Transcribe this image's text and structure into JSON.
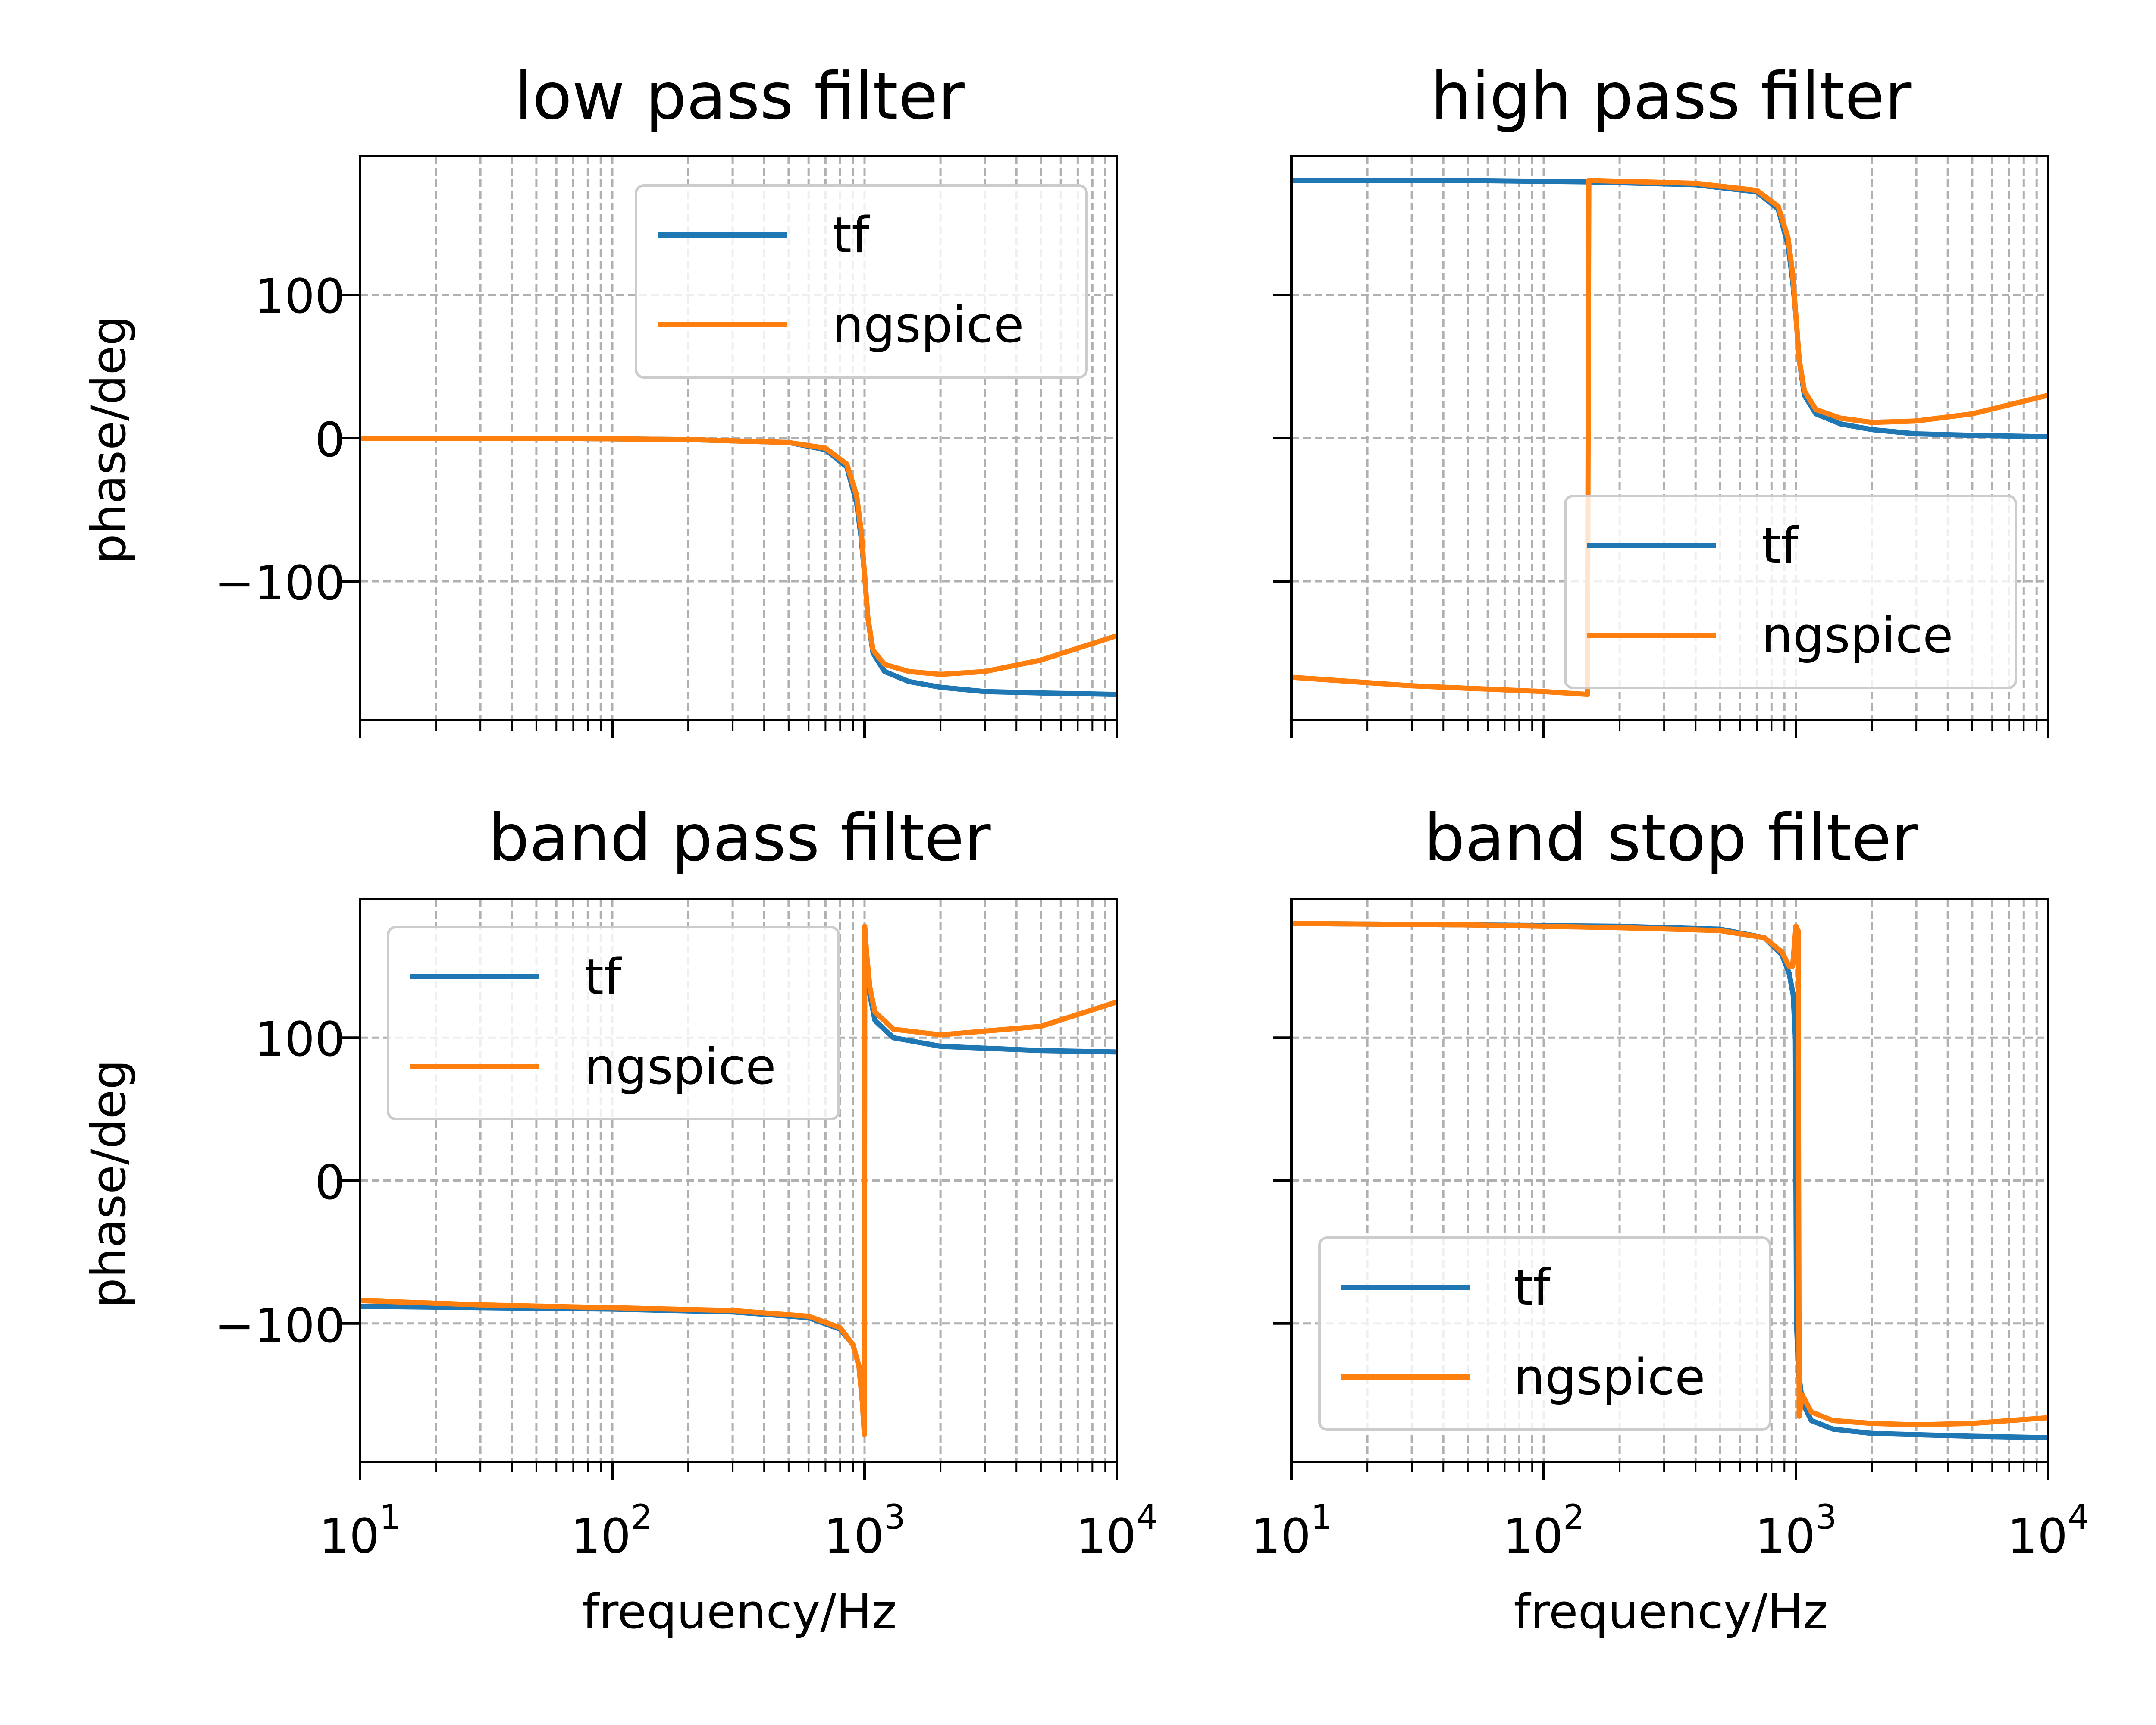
{
  "colors": {
    "tf": "#1f77b4",
    "ngspice": "#ff7f0e",
    "grid": "#b0b0b0",
    "legend_edge": "#cccccc"
  },
  "chart_data": [
    {
      "type": "line",
      "title": "low pass filter",
      "xlabel": "",
      "ylabel": "phase/deg",
      "xscale": "log",
      "xlim": [
        10,
        10000
      ],
      "ylim": [
        -197,
        197
      ],
      "yticks": [
        -100,
        0,
        100
      ],
      "ytick_labels": [
        "−100",
        "0",
        "100"
      ],
      "xticks": [
        10,
        100,
        1000,
        10000
      ],
      "xtick_labels_shown": false,
      "grid": true,
      "legend": {
        "placement": "upper right",
        "entries": [
          "tf",
          "ngspice"
        ]
      },
      "series": [
        {
          "name": "tf",
          "x": [
            10,
            50,
            200,
            500,
            700,
            850,
            930,
            970,
            1000,
            1030,
            1080,
            1200,
            1500,
            2000,
            3000,
            5000,
            10000
          ],
          "y": [
            0,
            0,
            -1,
            -3,
            -8,
            -20,
            -45,
            -70,
            -95,
            -125,
            -150,
            -163,
            -170,
            -174,
            -177,
            -178,
            -179
          ]
        },
        {
          "name": "ngspice",
          "x": [
            10,
            50,
            200,
            500,
            700,
            850,
            930,
            970,
            1000,
            1030,
            1080,
            1200,
            1500,
            2000,
            3000,
            5000,
            10000
          ],
          "y": [
            0,
            0,
            -1,
            -3,
            -7,
            -18,
            -40,
            -65,
            -95,
            -125,
            -148,
            -158,
            -163,
            -165,
            -163,
            -155,
            -138
          ]
        }
      ]
    },
    {
      "type": "line",
      "title": "high pass filter",
      "xlabel": "",
      "ylabel": "",
      "xscale": "log",
      "xlim": [
        10,
        10000
      ],
      "ylim": [
        -197,
        197
      ],
      "yticks": [
        -100,
        0,
        100
      ],
      "ytick_labels": [
        "",
        "",
        ""
      ],
      "xticks": [
        10,
        100,
        1000,
        10000
      ],
      "xtick_labels_shown": false,
      "grid": true,
      "legend": {
        "placement": "lower right",
        "entries": [
          "tf",
          "ngspice"
        ]
      },
      "series": [
        {
          "name": "tf",
          "x": [
            10,
            50,
            150,
            400,
            700,
            850,
            930,
            970,
            1000,
            1030,
            1080,
            1200,
            1500,
            2000,
            3000,
            5000,
            10000
          ],
          "y": [
            180,
            180,
            179,
            177,
            172,
            160,
            135,
            110,
            85,
            55,
            30,
            17,
            10,
            6,
            3,
            2,
            1
          ]
        },
        {
          "name": "ngspice",
          "x": [
            10,
            30,
            100,
            149,
            151,
            400,
            700,
            850,
            930,
            970,
            1000,
            1030,
            1080,
            1200,
            1500,
            2000,
            3000,
            5000,
            10000
          ],
          "y": [
            -167,
            -173,
            -177,
            -179,
            180,
            178,
            173,
            162,
            140,
            115,
            85,
            55,
            33,
            20,
            14,
            11,
            12,
            17,
            30
          ]
        }
      ]
    },
    {
      "type": "line",
      "title": "band pass filter",
      "xlabel": "frequency/Hz",
      "ylabel": "phase/deg",
      "xscale": "log",
      "xlim": [
        10,
        10000
      ],
      "ylim": [
        -197,
        197
      ],
      "yticks": [
        -100,
        0,
        100
      ],
      "ytick_labels": [
        "−100",
        "0",
        "100"
      ],
      "xticks": [
        10,
        100,
        1000,
        10000
      ],
      "xtick_base": "10",
      "xtick_exponents": [
        "1",
        "2",
        "3",
        "4"
      ],
      "xtick_labels_shown": true,
      "grid": true,
      "legend": {
        "placement": "upper left",
        "entries": [
          "tf",
          "ngspice"
        ]
      },
      "series": [
        {
          "name": "tf",
          "x": [
            10,
            30,
            100,
            300,
            600,
            800,
            900,
            950,
            980,
            999,
            1001,
            1020,
            1050,
            1100,
            1300,
            2000,
            5000,
            10000
          ],
          "y": [
            -88,
            -89,
            -90,
            -92,
            -96,
            -104,
            -115,
            -130,
            -155,
            -178,
            178,
            155,
            130,
            112,
            100,
            94,
            91,
            90
          ]
        },
        {
          "name": "ngspice",
          "x": [
            10,
            30,
            100,
            300,
            600,
            800,
            900,
            950,
            980,
            999,
            1001,
            1020,
            1050,
            1100,
            1300,
            2000,
            5000,
            10000
          ],
          "y": [
            -84,
            -87,
            -89,
            -91,
            -95,
            -103,
            -115,
            -130,
            -155,
            -178,
            178,
            158,
            135,
            118,
            106,
            102,
            108,
            125
          ]
        }
      ]
    },
    {
      "type": "line",
      "title": "band stop filter",
      "xlabel": "frequency/Hz",
      "ylabel": "",
      "xscale": "log",
      "xlim": [
        10,
        10000
      ],
      "ylim": [
        -197,
        197
      ],
      "yticks": [
        -100,
        0,
        100
      ],
      "ytick_labels": [
        "",
        "",
        ""
      ],
      "xticks": [
        10,
        100,
        1000,
        10000
      ],
      "xtick_base": "10",
      "xtick_exponents": [
        "1",
        "2",
        "3",
        "4"
      ],
      "xtick_labels_shown": true,
      "grid": true,
      "legend": {
        "placement": "lower left",
        "entries": [
          "tf",
          "ngspice"
        ]
      },
      "series": [
        {
          "name": "tf",
          "x": [
            10,
            50,
            200,
            500,
            750,
            880,
            940,
            975,
            995,
            1005,
            1025,
            1060,
            1150,
            1400,
            2000,
            5000,
            10000
          ],
          "y": [
            180,
            179,
            178,
            176,
            170,
            158,
            145,
            130,
            100,
            -100,
            -135,
            -155,
            -168,
            -174,
            -177,
            -179,
            -180
          ]
        },
        {
          "name": "ngspice",
          "x": [
            10,
            50,
            200,
            500,
            750,
            880,
            940,
            970,
            1000,
            1020,
            1030,
            1060,
            1150,
            1400,
            2000,
            3000,
            5000,
            10000
          ],
          "y": [
            180,
            179,
            177,
            175,
            170,
            160,
            150,
            150,
            178,
            175,
            -165,
            -150,
            -162,
            -168,
            -170,
            -171,
            -170,
            -166
          ]
        }
      ]
    }
  ]
}
